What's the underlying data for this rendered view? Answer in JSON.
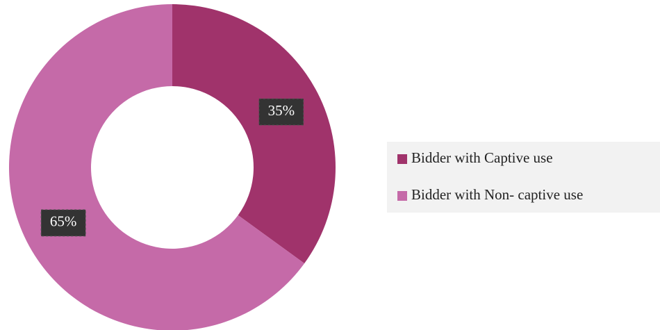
{
  "chart_data": {
    "type": "donut",
    "categories": [
      "Bidder with Captive use",
      "Bidder with Non- captive use"
    ],
    "values": [
      35,
      65
    ],
    "value_labels": [
      "35%",
      "65%"
    ],
    "colors": [
      "#a0336b",
      "#c56aa8"
    ],
    "legend": "right"
  }
}
